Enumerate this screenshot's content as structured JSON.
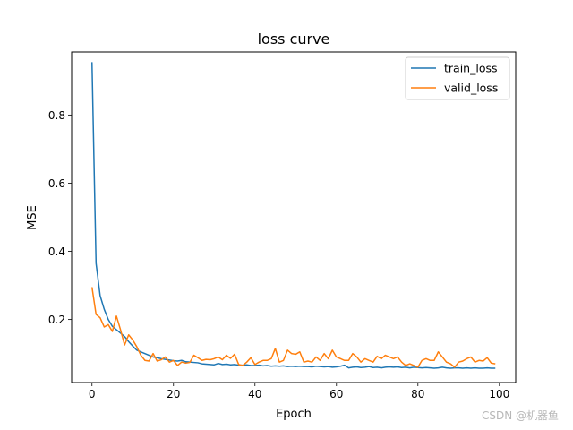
{
  "chart_data": {
    "type": "line",
    "title": "loss curve",
    "xlabel": "Epoch",
    "ylabel": "MSE",
    "xlim": [
      -5,
      104
    ],
    "ylim": [
      0.015,
      0.985
    ],
    "xticks": [
      0,
      20,
      40,
      60,
      80,
      100
    ],
    "yticks": [
      0.2,
      0.4,
      0.6,
      0.8
    ],
    "ytick_labels": [
      "0.2",
      "0.4",
      "0.6",
      "0.8"
    ],
    "grid": false,
    "legend_position": "top-right",
    "series": [
      {
        "name": "train_loss",
        "color": "#1f77b4",
        "x": [
          0,
          1,
          2,
          3,
          4,
          5,
          6,
          7,
          8,
          9,
          10,
          11,
          12,
          13,
          14,
          15,
          16,
          17,
          18,
          19,
          20,
          21,
          22,
          23,
          24,
          25,
          26,
          27,
          28,
          29,
          30,
          31,
          32,
          33,
          34,
          35,
          36,
          37,
          38,
          39,
          40,
          41,
          42,
          43,
          44,
          45,
          46,
          47,
          48,
          49,
          50,
          51,
          52,
          53,
          54,
          55,
          56,
          57,
          58,
          59,
          60,
          61,
          62,
          63,
          64,
          65,
          66,
          67,
          68,
          69,
          70,
          71,
          72,
          73,
          74,
          75,
          76,
          77,
          78,
          79,
          80,
          81,
          82,
          83,
          84,
          85,
          86,
          87,
          88,
          89,
          90,
          91,
          92,
          93,
          94,
          95,
          96,
          97,
          98,
          99
        ],
        "values": [
          0.955,
          0.365,
          0.27,
          0.23,
          0.2,
          0.18,
          0.17,
          0.16,
          0.15,
          0.135,
          0.122,
          0.11,
          0.105,
          0.1,
          0.095,
          0.09,
          0.088,
          0.085,
          0.083,
          0.081,
          0.079,
          0.078,
          0.08,
          0.076,
          0.075,
          0.074,
          0.073,
          0.07,
          0.069,
          0.068,
          0.067,
          0.071,
          0.068,
          0.069,
          0.067,
          0.068,
          0.066,
          0.066,
          0.067,
          0.065,
          0.065,
          0.066,
          0.064,
          0.065,
          0.063,
          0.064,
          0.063,
          0.064,
          0.062,
          0.063,
          0.062,
          0.063,
          0.062,
          0.062,
          0.061,
          0.063,
          0.062,
          0.061,
          0.062,
          0.06,
          0.061,
          0.063,
          0.066,
          0.058,
          0.06,
          0.061,
          0.059,
          0.06,
          0.062,
          0.059,
          0.06,
          0.058,
          0.06,
          0.061,
          0.06,
          0.061,
          0.059,
          0.06,
          0.058,
          0.06,
          0.059,
          0.058,
          0.059,
          0.058,
          0.057,
          0.058,
          0.06,
          0.058,
          0.057,
          0.058,
          0.058,
          0.057,
          0.058,
          0.057,
          0.058,
          0.057,
          0.057,
          0.058,
          0.057,
          0.057
        ]
      },
      {
        "name": "valid_loss",
        "color": "#ff7f0e",
        "x": [
          0,
          1,
          2,
          3,
          4,
          5,
          6,
          7,
          8,
          9,
          10,
          11,
          12,
          13,
          14,
          15,
          16,
          17,
          18,
          19,
          20,
          21,
          22,
          23,
          24,
          25,
          26,
          27,
          28,
          29,
          30,
          31,
          32,
          33,
          34,
          35,
          36,
          37,
          38,
          39,
          40,
          41,
          42,
          43,
          44,
          45,
          46,
          47,
          48,
          49,
          50,
          51,
          52,
          53,
          54,
          55,
          56,
          57,
          58,
          59,
          60,
          61,
          62,
          63,
          64,
          65,
          66,
          67,
          68,
          69,
          70,
          71,
          72,
          73,
          74,
          75,
          76,
          77,
          78,
          79,
          80,
          81,
          82,
          83,
          84,
          85,
          86,
          87,
          88,
          89,
          90,
          91,
          92,
          93,
          94,
          95,
          96,
          97,
          98,
          99
        ],
        "values": [
          0.295,
          0.215,
          0.205,
          0.178,
          0.185,
          0.165,
          0.21,
          0.17,
          0.125,
          0.155,
          0.14,
          0.12,
          0.095,
          0.08,
          0.078,
          0.1,
          0.078,
          0.082,
          0.09,
          0.075,
          0.08,
          0.065,
          0.075,
          0.072,
          0.074,
          0.095,
          0.088,
          0.08,
          0.083,
          0.082,
          0.085,
          0.09,
          0.082,
          0.095,
          0.086,
          0.098,
          0.068,
          0.065,
          0.075,
          0.088,
          0.068,
          0.075,
          0.08,
          0.08,
          0.085,
          0.115,
          0.075,
          0.08,
          0.11,
          0.1,
          0.098,
          0.105,
          0.075,
          0.078,
          0.075,
          0.09,
          0.08,
          0.1,
          0.085,
          0.11,
          0.09,
          0.085,
          0.08,
          0.08,
          0.1,
          0.09,
          0.075,
          0.085,
          0.08,
          0.075,
          0.092,
          0.085,
          0.095,
          0.09,
          0.085,
          0.09,
          0.075,
          0.065,
          0.07,
          0.065,
          0.06,
          0.08,
          0.085,
          0.08,
          0.08,
          0.105,
          0.09,
          0.075,
          0.07,
          0.06,
          0.075,
          0.078,
          0.085,
          0.09,
          0.075,
          0.08,
          0.078,
          0.088,
          0.072,
          0.07
        ]
      }
    ]
  },
  "watermark": "CSDN @机器鱼"
}
